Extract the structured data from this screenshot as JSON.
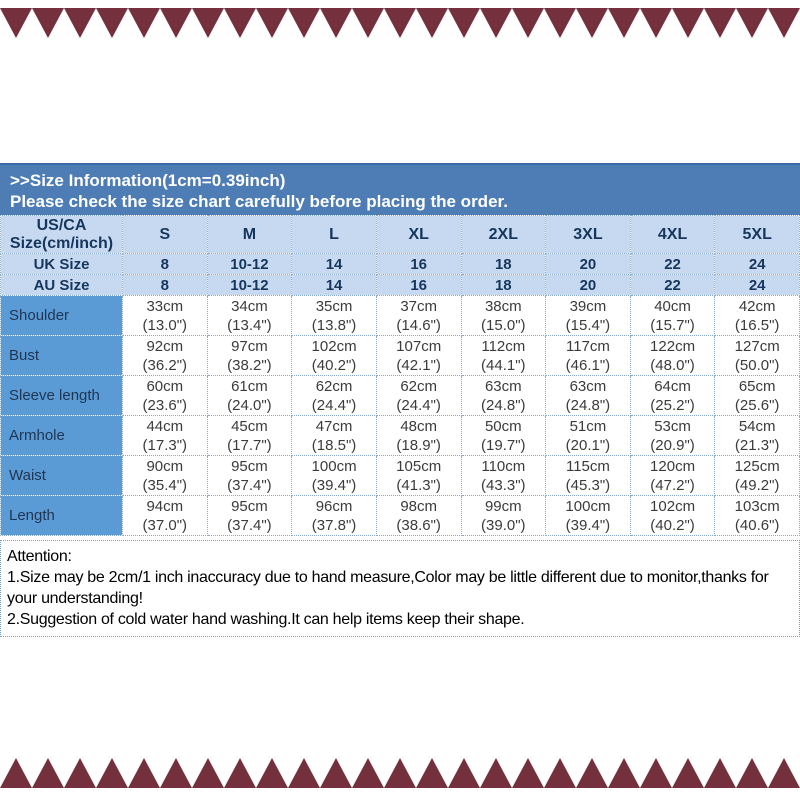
{
  "decor": {
    "zigzag_color": "#74303c"
  },
  "header": {
    "line1": ">>Size Information(1cm=0.39inch)",
    "line2": "Please check the size chart carefully before placing the order.",
    "bg": "#4e7db6",
    "text_color": "#ffffff"
  },
  "size_table": {
    "corner_line1": "US/CA",
    "corner_line2": "Size(cm/inch)",
    "size_headers": [
      "S",
      "M",
      "L",
      "XL",
      "2XL",
      "3XL",
      "4XL",
      "5XL"
    ],
    "uk_row": {
      "label": "UK Size",
      "values": [
        "8",
        "10-12",
        "14",
        "16",
        "18",
        "20",
        "22",
        "24"
      ]
    },
    "au_row": {
      "label": "AU Size",
      "values": [
        "8",
        "10-12",
        "14",
        "16",
        "18",
        "20",
        "22",
        "24"
      ]
    },
    "measure_rows": [
      {
        "label": "Shoulder",
        "cm": [
          "33cm",
          "34cm",
          "35cm",
          "37cm",
          "38cm",
          "39cm",
          "40cm",
          "42cm"
        ],
        "inch": [
          "(13.0\")",
          "(13.4\")",
          "(13.8\")",
          "(14.6\")",
          "(15.0\")",
          "(15.4\")",
          "(15.7\")",
          "(16.5\")"
        ]
      },
      {
        "label": "Bust",
        "cm": [
          "92cm",
          "97cm",
          "102cm",
          "107cm",
          "112cm",
          "117cm",
          "122cm",
          "127cm"
        ],
        "inch": [
          "(36.2\")",
          "(38.2\")",
          "(40.2\")",
          "(42.1\")",
          "(44.1\")",
          "(46.1\")",
          "(48.0\")",
          "(50.0\")"
        ]
      },
      {
        "label": "Sleeve length",
        "cm": [
          "60cm",
          "61cm",
          "62cm",
          "62cm",
          "63cm",
          "63cm",
          "64cm",
          "65cm"
        ],
        "inch": [
          "(23.6\")",
          "(24.0\")",
          "(24.4\")",
          "(24.4\")",
          "(24.8\")",
          "(24.8\")",
          "(25.2\")",
          "(25.6\")"
        ]
      },
      {
        "label": "Armhole",
        "cm": [
          "44cm",
          "45cm",
          "47cm",
          "48cm",
          "50cm",
          "51cm",
          "53cm",
          "54cm"
        ],
        "inch": [
          "(17.3\")",
          "(17.7\")",
          "(18.5\")",
          "(18.9\")",
          "(19.7\")",
          "(20.1\")",
          "(20.9\")",
          "(21.3\")"
        ]
      },
      {
        "label": "Waist",
        "cm": [
          "90cm",
          "95cm",
          "100cm",
          "105cm",
          "110cm",
          "115cm",
          "120cm",
          "125cm"
        ],
        "inch": [
          "(35.4\")",
          "(37.4\")",
          "(39.4\")",
          "(41.3\")",
          "(43.3\")",
          "(45.3\")",
          "(47.2\")",
          "(49.2\")"
        ]
      },
      {
        "label": "Length",
        "cm": [
          "94cm",
          "95cm",
          "96cm",
          "98cm",
          "99cm",
          "100cm",
          "102cm",
          "103cm"
        ],
        "inch": [
          "(37.0\")",
          "(37.4\")",
          "(37.8\")",
          "(38.6\")",
          "(39.0\")",
          "(39.4\")",
          "(40.2\")",
          "(40.6\")"
        ]
      }
    ],
    "colors": {
      "header_bg": "#c6d9f0",
      "label_column_bg": "#5b9bd5",
      "border": "#85a8d0",
      "header_text": "#17365d",
      "cell_text": "#3b3b3b"
    }
  },
  "attention": {
    "title": "Attention:",
    "line1": "1.Size may be 2cm/1 inch inaccuracy due to hand measure,Color may be little different due to monitor,thanks for your understanding!",
    "line2": "2.Suggestion of cold water hand washing.It can help items keep their shape."
  }
}
